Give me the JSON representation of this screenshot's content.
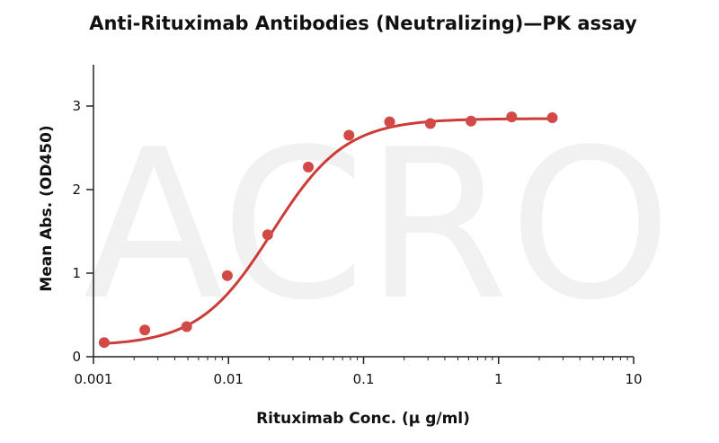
{
  "chart_data": {
    "type": "scatter",
    "title": "Anti-Rituximab Antibodies (Neutralizing)—PK assay",
    "xlabel": "Rituximab Conc. (μ g/ml)",
    "ylabel": "Mean Abs. (OD450)",
    "x_scale": "log",
    "xlim": [
      0.001,
      10
    ],
    "ylim": [
      0,
      3.3
    ],
    "x_ticks": [
      0.001,
      0.01,
      0.1,
      1,
      10
    ],
    "x_tick_labels": [
      "0.001",
      "0.01",
      "0.1",
      "1",
      "10"
    ],
    "y_ticks": [
      0,
      1,
      2,
      3
    ],
    "y_tick_labels": [
      "0",
      "1",
      "2",
      "3"
    ],
    "grid": false,
    "series": [
      {
        "color": "#d24a48",
        "x": [
          0.0012,
          0.0024,
          0.0049,
          0.0098,
          0.0195,
          0.039,
          0.078,
          0.156,
          0.3125,
          0.625,
          1.25,
          2.5
        ],
        "y": [
          0.17,
          0.32,
          0.36,
          0.97,
          1.46,
          2.27,
          2.65,
          2.81,
          2.79,
          2.82,
          2.87,
          2.86
        ]
      }
    ],
    "fit": {
      "bottom": 0.13,
      "top": 2.85,
      "ec50": 0.021,
      "hill": 1.6,
      "color": "#cc3c38"
    },
    "watermark": "ACRO"
  }
}
